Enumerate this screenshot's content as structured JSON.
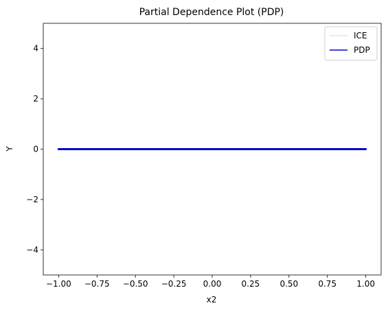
{
  "chart_data": {
    "type": "line",
    "title": "Partial Dependence Plot (PDP)",
    "xlabel": "x2",
    "ylabel": "Y",
    "xlim": [
      -1.1,
      1.1
    ],
    "ylim": [
      -5,
      5
    ],
    "xticks": [
      -1.0,
      -0.75,
      -0.5,
      -0.25,
      0.0,
      0.25,
      0.5,
      0.75,
      1.0
    ],
    "xtick_labels": [
      "−1.00",
      "−0.75",
      "−0.50",
      "−0.25",
      "0.00",
      "0.25",
      "0.50",
      "0.75",
      "1.00"
    ],
    "yticks": [
      -4,
      -2,
      0,
      2,
      4
    ],
    "ytick_labels": [
      "−4",
      "−2",
      "0",
      "2",
      "4"
    ],
    "grid": false,
    "legend_position": "top-right",
    "series": [
      {
        "name": "ICE",
        "color": "#ffc0cb",
        "x": [
          -1.0,
          1.0
        ],
        "y": [
          0,
          0
        ]
      },
      {
        "name": "PDP",
        "color": "#0000cc",
        "x": [
          -1.0,
          1.0
        ],
        "y": [
          0,
          0
        ]
      }
    ]
  }
}
